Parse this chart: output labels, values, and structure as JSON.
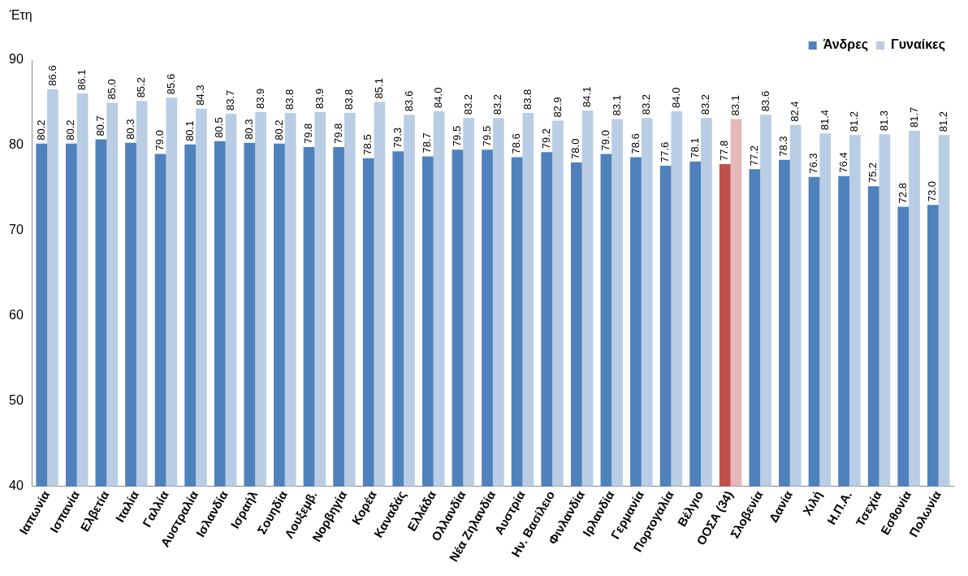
{
  "chart_data": {
    "type": "bar",
    "ylabel": "Έτη",
    "categories": [
      "Ιαπωνία",
      "Ισπανία",
      "Ελβετία",
      "Ιταλία",
      "Γαλλία",
      "Αυστραλία",
      "Ισλανδία",
      "Ισραήλ",
      "Σουηδία",
      "Λουξεμβ.",
      "Νορβηγία",
      "Κορέα",
      "Καναδάς",
      "Ελλάδα",
      "Ολλανδία",
      "Νέα Ζηλανδία",
      "Αυστρία",
      "Ην. Βασίλειο",
      "Φινλανδία",
      "Ιρλανδία",
      "Γερμανία",
      "Πορτογαλία",
      "Βέλγιο",
      "ΟΟΣΑ (34)",
      "Σλοβενία",
      "Δανία",
      "Χιλή",
      "Η.Π.Α.",
      "Τσεχία",
      "Εσθονία",
      "Πολωνία"
    ],
    "series": [
      {
        "name": "Άνδρες",
        "color": "#4f81bd",
        "colors": [
          "#4f81bd",
          "#4f81bd",
          "#4f81bd",
          "#4f81bd",
          "#4f81bd",
          "#4f81bd",
          "#4f81bd",
          "#4f81bd",
          "#4f81bd",
          "#4f81bd",
          "#4f81bd",
          "#4f81bd",
          "#4f81bd",
          "#4f81bd",
          "#4f81bd",
          "#4f81bd",
          "#4f81bd",
          "#4f81bd",
          "#4f81bd",
          "#4f81bd",
          "#4f81bd",
          "#4f81bd",
          "#4f81bd",
          "#c0504d",
          "#4f81bd",
          "#4f81bd",
          "#4f81bd",
          "#4f81bd",
          "#4f81bd",
          "#4f81bd",
          "#4f81bd"
        ],
        "value_labels": [
          "80.2",
          "80.2",
          "80.7",
          "80.3",
          "79.0",
          "80.1",
          "80.5",
          "80.3",
          "80.2",
          "79.8",
          "79.8",
          "78.5",
          "79.3",
          "78.7",
          "79.5",
          "79.5",
          "78.6",
          "79.2",
          "78.0",
          "79.0",
          "78.6",
          "77.6",
          "78.1",
          "77.8",
          "77.2",
          "78.3",
          "76.3",
          "76.4",
          "75.2",
          "72.8",
          "73.0"
        ],
        "values": [
          80.2,
          80.2,
          80.7,
          80.3,
          79.0,
          80.1,
          80.5,
          80.3,
          80.2,
          79.8,
          79.8,
          78.5,
          79.3,
          78.7,
          79.5,
          79.5,
          78.6,
          79.2,
          78.0,
          79.0,
          78.6,
          77.6,
          78.1,
          77.8,
          77.2,
          78.3,
          76.3,
          76.4,
          75.2,
          72.8,
          73.0
        ]
      },
      {
        "name": "Γυναίκες",
        "color": "#b9cde5",
        "colors": [
          "#b9cde5",
          "#b9cde5",
          "#b9cde5",
          "#b9cde5",
          "#b9cde5",
          "#b9cde5",
          "#b9cde5",
          "#b9cde5",
          "#b9cde5",
          "#b9cde5",
          "#b9cde5",
          "#b9cde5",
          "#b9cde5",
          "#b9cde5",
          "#b9cde5",
          "#b9cde5",
          "#b9cde5",
          "#b9cde5",
          "#b9cde5",
          "#b9cde5",
          "#b9cde5",
          "#b9cde5",
          "#b9cde5",
          "#e6b9b8",
          "#b9cde5",
          "#b9cde5",
          "#b9cde5",
          "#b9cde5",
          "#b9cde5",
          "#b9cde5",
          "#b9cde5"
        ],
        "value_labels": [
          "86.6",
          "86.1",
          "85.0",
          "85.2",
          "85.6",
          "84.3",
          "83.7",
          "83.9",
          "83.8",
          "83.9",
          "83.8",
          "85.1",
          "83.6",
          "84.0",
          "83.2",
          "83.2",
          "83.8",
          "82.9",
          "84.1",
          "83.1",
          "83.2",
          "84.0",
          "83.2",
          "83.1",
          "83.6",
          "82.4",
          "81.4",
          "81.2",
          "81.3",
          "81.7",
          "81.2"
        ],
        "values": [
          86.6,
          86.1,
          85.0,
          85.2,
          85.6,
          84.3,
          83.7,
          83.9,
          83.8,
          83.9,
          83.8,
          85.1,
          83.6,
          84.0,
          83.2,
          83.2,
          83.8,
          82.9,
          84.1,
          83.1,
          83.2,
          84.0,
          83.2,
          83.1,
          83.6,
          82.4,
          81.4,
          81.2,
          81.3,
          81.7,
          81.2
        ]
      }
    ],
    "ylim": [
      40,
      90
    ],
    "yticks": [
      40,
      50,
      60,
      70,
      80,
      90
    ],
    "grid": false,
    "legend": "top right"
  }
}
